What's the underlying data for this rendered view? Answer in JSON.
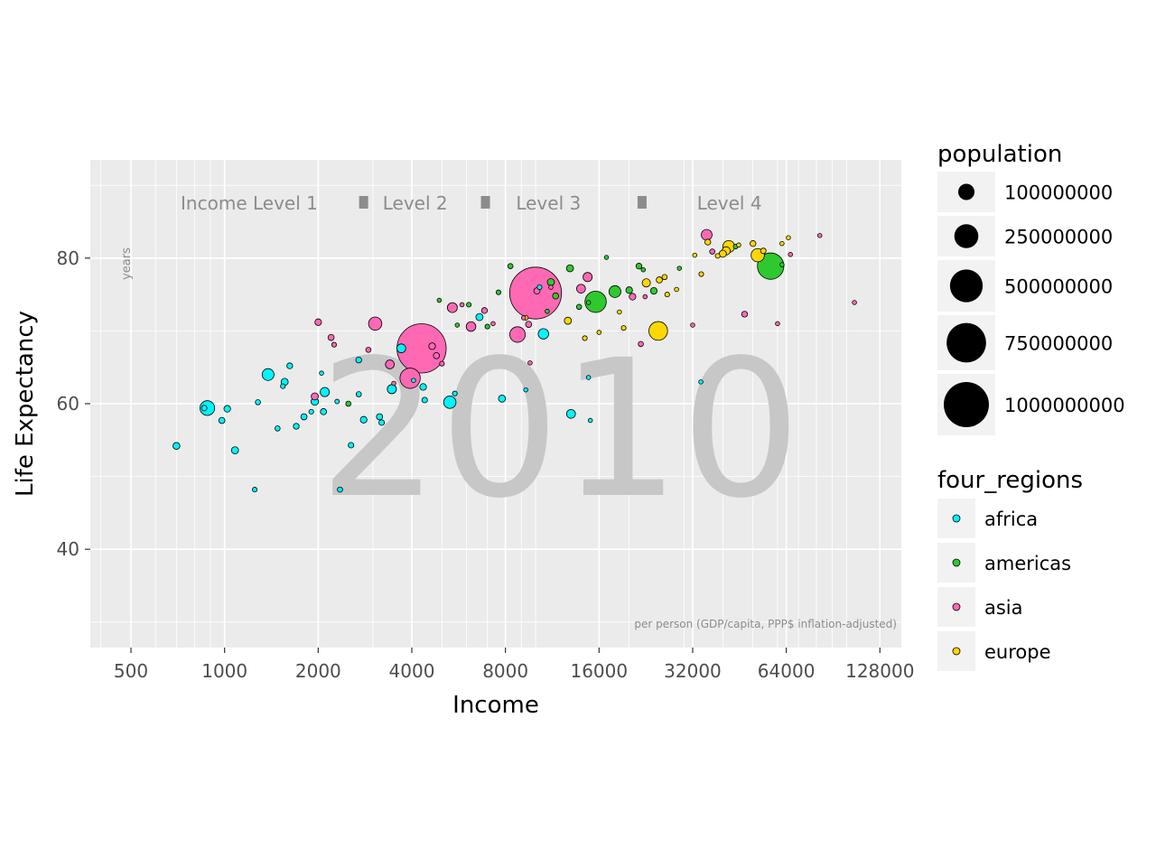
{
  "chart_data": {
    "type": "scatter",
    "xlabel": "Income",
    "ylabel": "Life Expectancy",
    "x_scale": "log2",
    "xlim": [
      370,
      150000
    ],
    "ylim": [
      26.5,
      93.5
    ],
    "x_ticks": [
      500,
      1000,
      2000,
      4000,
      8000,
      16000,
      32000,
      64000,
      128000
    ],
    "x_tick_labels": [
      "500",
      "1000",
      "2000",
      "4000",
      "8000",
      "16000",
      "32000",
      "64000",
      "128000"
    ],
    "y_ticks": [
      40,
      60,
      80
    ],
    "y_tick_labels": [
      "40",
      "60",
      "80"
    ],
    "grid": true,
    "year_label": "2010",
    "y_unit_label": "years",
    "x_unit_label": "per person (GDP/capita, PPP$ inflation-adjusted)",
    "income_levels": [
      {
        "label": "Income Level 1",
        "x": 1200
      },
      {
        "label": "Level 2",
        "x": 4100
      },
      {
        "label": "Level 3",
        "x": 11000
      },
      {
        "label": "Level 4",
        "x": 42000
      }
    ],
    "income_level_markers": [
      2800,
      6900,
      22000
    ],
    "size_legend": {
      "title": "population",
      "entries": [
        {
          "label": "100000000",
          "value": 100000000
        },
        {
          "label": "250000000",
          "value": 250000000
        },
        {
          "label": "500000000",
          "value": 500000000
        },
        {
          "label": "750000000",
          "value": 750000000
        },
        {
          "label": "1000000000",
          "value": 1000000000
        }
      ]
    },
    "color_legend": {
      "title": "four_regions",
      "entries": [
        {
          "label": "africa",
          "color": "#00f5ff"
        },
        {
          "label": "americas",
          "color": "#2ec92e"
        },
        {
          "label": "asia",
          "color": "#ff69b4"
        },
        {
          "label": "europe",
          "color": "#ffd700"
        }
      ]
    },
    "series": [
      {
        "name": "africa",
        "color": "#00f5ff",
        "points": [
          [
            700,
            54.2,
            9000000
          ],
          [
            880,
            59.4,
            78000000
          ],
          [
            860,
            59.4,
            4000000
          ],
          [
            980,
            57.7,
            6000000
          ],
          [
            1020,
            59.3,
            8000000
          ],
          [
            1080,
            53.6,
            10000000
          ],
          [
            1250,
            48.2,
            2000000
          ],
          [
            1280,
            60.2,
            3000000
          ],
          [
            1380,
            64.0,
            45000000
          ],
          [
            1480,
            56.6,
            3000000
          ],
          [
            1560,
            63.0,
            10000000
          ],
          [
            1540,
            62.4,
            2000000
          ],
          [
            1620,
            65.2,
            5000000
          ],
          [
            1700,
            56.9,
            5000000
          ],
          [
            1800,
            58.2,
            6000000
          ],
          [
            1900,
            58.9,
            2000000
          ],
          [
            1950,
            60.3,
            12000000
          ],
          [
            2100,
            61.6,
            22000000
          ],
          [
            2080,
            58.9,
            6000000
          ],
          [
            2050,
            64.2,
            1000000
          ],
          [
            2300,
            60.3,
            1500000
          ],
          [
            2350,
            48.2,
            3000000
          ],
          [
            2550,
            54.3,
            4000000
          ],
          [
            2700,
            66.0,
            5000000
          ],
          [
            2700,
            61.3,
            3000000
          ],
          [
            2800,
            57.8,
            8000000
          ],
          [
            3150,
            58.2,
            6000000
          ],
          [
            3200,
            57.4,
            4000000
          ],
          [
            3450,
            62.0,
            22000000
          ],
          [
            3700,
            67.6,
            20000000
          ],
          [
            4050,
            63.2,
            1000000
          ],
          [
            4350,
            62.3,
            8000000
          ],
          [
            4400,
            60.5,
            4000000
          ],
          [
            5300,
            60.2,
            50000000
          ],
          [
            5500,
            61.4,
            2000000
          ],
          [
            6600,
            71.9,
            10000000
          ],
          [
            7800,
            60.7,
            10000000
          ],
          [
            9300,
            61.9,
            1000000
          ],
          [
            10600,
            69.6,
            32000000
          ],
          [
            10300,
            76.0,
            2000000
          ],
          [
            13000,
            58.6,
            20000000
          ],
          [
            14800,
            63.6,
            1000000
          ],
          [
            15000,
            57.7,
            1000000
          ],
          [
            34000,
            63.0,
            1000000
          ]
        ]
      },
      {
        "name": "americas",
        "color": "#2ec92e",
        "points": [
          [
            2500,
            60.0,
            3000000
          ],
          [
            4900,
            74.2,
            1000000
          ],
          [
            5600,
            70.8,
            1000000
          ],
          [
            6100,
            73.6,
            2000000
          ],
          [
            7000,
            70.6,
            2000000
          ],
          [
            7600,
            75.3,
            2000000
          ],
          [
            8300,
            78.9,
            3000000
          ],
          [
            10900,
            72.7,
            1000000
          ],
          [
            11200,
            76.7,
            10000000
          ],
          [
            11600,
            74.8,
            6000000
          ],
          [
            12900,
            78.6,
            10000000
          ],
          [
            13800,
            73.3,
            3000000
          ],
          [
            14800,
            73.9,
            1000000
          ],
          [
            15600,
            74.0,
            190000000
          ],
          [
            16900,
            80.1,
            1000000
          ],
          [
            18000,
            75.4,
            45000000
          ],
          [
            20000,
            75.6,
            8000000
          ],
          [
            21500,
            78.9,
            5000000
          ],
          [
            22200,
            78.4,
            1000000
          ],
          [
            24000,
            75.5,
            8000000
          ],
          [
            29000,
            78.6,
            1000000
          ],
          [
            44000,
            81.6,
            2000000
          ],
          [
            57000,
            78.9,
            310000000
          ],
          [
            62000,
            79.1,
            1000000
          ]
        ]
      },
      {
        "name": "asia",
        "color": "#ff69b4",
        "points": [
          [
            1950,
            61.0,
            10000000
          ],
          [
            2000,
            71.2,
            8000000
          ],
          [
            2200,
            69.1,
            6000000
          ],
          [
            2250,
            68.1,
            2000000
          ],
          [
            2900,
            67.4,
            3000000
          ],
          [
            3050,
            71.0,
            60000000
          ],
          [
            3400,
            65.4,
            20000000
          ],
          [
            3500,
            62.8,
            1000000
          ],
          [
            3950,
            63.5,
            170000000
          ],
          [
            4300,
            67.6,
            1200000000
          ],
          [
            4650,
            67.9,
            8000000
          ],
          [
            4800,
            66.6,
            6000000
          ],
          [
            5000,
            65.5,
            2000000
          ],
          [
            5400,
            73.2,
            28000000
          ],
          [
            5800,
            73.6,
            1000000
          ],
          [
            6200,
            70.6,
            25000000
          ],
          [
            6850,
            72.8,
            5000000
          ],
          [
            7300,
            71.0,
            1000000
          ],
          [
            8750,
            69.5,
            90000000
          ],
          [
            9150,
            71.8,
            1000000
          ],
          [
            9500,
            70.9,
            6000000
          ],
          [
            9600,
            65.6,
            1000000
          ],
          [
            10000,
            75.2,
            1340000000
          ],
          [
            10100,
            75.5,
            6000000
          ],
          [
            11200,
            76.0,
            1000000
          ],
          [
            14000,
            75.8,
            20000000
          ],
          [
            14700,
            77.4,
            22000000
          ],
          [
            20500,
            74.7,
            8000000
          ],
          [
            21800,
            68.2,
            3000000
          ],
          [
            22500,
            74.7,
            1000000
          ],
          [
            32000,
            70.8,
            1000000
          ],
          [
            35500,
            83.2,
            35000000
          ],
          [
            37000,
            80.9,
            3000000
          ],
          [
            47000,
            72.3,
            5000000
          ],
          [
            60000,
            71.0,
            1000000
          ],
          [
            66000,
            80.5,
            1000000
          ],
          [
            82000,
            83.1,
            1000000
          ],
          [
            106000,
            73.9,
            1000000
          ]
        ]
      },
      {
        "name": "europe",
        "color": "#ffd700",
        "points": [
          [
            9300,
            71.8,
            2000000
          ],
          [
            12700,
            71.4,
            10000000
          ],
          [
            14400,
            69.0,
            2000000
          ],
          [
            16000,
            69.8,
            1000000
          ],
          [
            18600,
            72.6,
            1000000
          ],
          [
            19200,
            70.4,
            2000000
          ],
          [
            22700,
            76.6,
            16000000
          ],
          [
            24800,
            70.0,
            140000000
          ],
          [
            25000,
            77.0,
            6000000
          ],
          [
            26500,
            75.0,
            2000000
          ],
          [
            26000,
            77.4,
            3000000
          ],
          [
            28400,
            75.7,
            1000000
          ],
          [
            32500,
            80.4,
            1000000
          ],
          [
            34100,
            77.8,
            2000000
          ],
          [
            35800,
            82.2,
            5000000
          ],
          [
            38500,
            80.3,
            2000000
          ],
          [
            40000,
            80.6,
            10000000
          ],
          [
            41000,
            81.0,
            16000000
          ],
          [
            41800,
            81.6,
            45000000
          ],
          [
            45000,
            81.8,
            1000000
          ],
          [
            50000,
            82.0,
            5000000
          ],
          [
            51800,
            80.4,
            60000000
          ],
          [
            54000,
            81.0,
            4000000
          ],
          [
            62000,
            82.0,
            1000000
          ],
          [
            65000,
            82.8,
            1000000
          ]
        ]
      }
    ]
  }
}
